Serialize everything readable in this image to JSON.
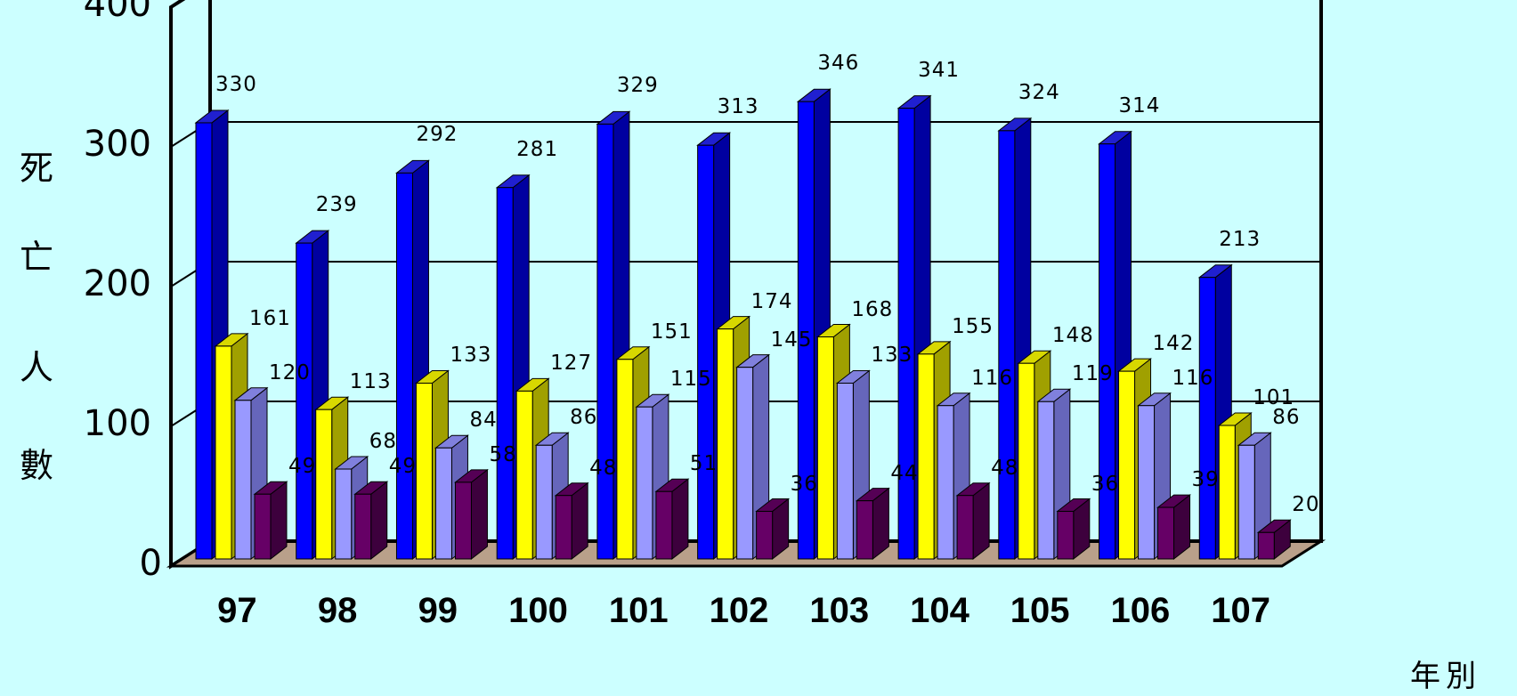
{
  "chart_data": {
    "type": "bar",
    "style": "3d-clustered",
    "ylabel": "死亡人數",
    "xlabel": "年別",
    "ylim": [
      0,
      400
    ],
    "yticks": [
      "0",
      "100",
      "200",
      "300",
      "400"
    ],
    "grid": true,
    "categories": [
      "97",
      "98",
      "99",
      "100",
      "101",
      "102",
      "103",
      "104",
      "105",
      "106",
      "107"
    ],
    "series": [
      {
        "color": "#0000ff",
        "side": "#0000a0",
        "top": "#2020d0",
        "values": [
          330,
          239,
          292,
          281,
          329,
          313,
          346,
          341,
          324,
          314,
          213
        ]
      },
      {
        "color": "#ffff00",
        "side": "#a0a000",
        "top": "#d8d800",
        "values": [
          161,
          113,
          133,
          127,
          151,
          174,
          168,
          155,
          148,
          142,
          101
        ]
      },
      {
        "color": "#9999ff",
        "side": "#6666bb",
        "top": "#8080dd",
        "values": [
          120,
          68,
          84,
          86,
          115,
          145,
          133,
          116,
          119,
          116,
          86
        ]
      },
      {
        "color": "#660066",
        "side": "#3d003d",
        "top": "#550055",
        "values": [
          49,
          49,
          58,
          48,
          51,
          36,
          44,
          48,
          36,
          39,
          20
        ]
      }
    ]
  }
}
